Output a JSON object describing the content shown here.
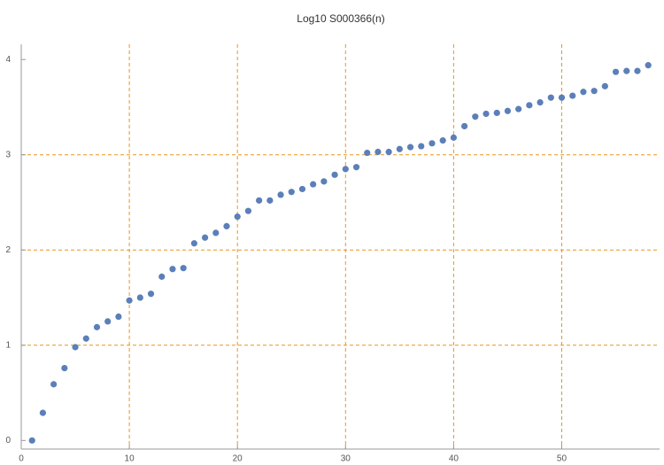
{
  "chart_data": {
    "type": "scatter",
    "title": "Log10 S000366(n)",
    "x": [
      1,
      2,
      3,
      4,
      5,
      6,
      7,
      8,
      9,
      10,
      11,
      12,
      13,
      14,
      15,
      16,
      17,
      18,
      19,
      20,
      21,
      22,
      23,
      24,
      25,
      26,
      27,
      28,
      29,
      30,
      31,
      32,
      33,
      34,
      35,
      36,
      37,
      38,
      39,
      40,
      41,
      42,
      43,
      44,
      45,
      46,
      47,
      48,
      49,
      50,
      51,
      52,
      53,
      54,
      55,
      56,
      57,
      58
    ],
    "series": [
      {
        "color": "#5b7fb8",
        "values": [
          0,
          0.29,
          0.59,
          0.76,
          0.98,
          1.07,
          1.19,
          1.25,
          1.3,
          1.47,
          1.5,
          1.54,
          1.72,
          1.8,
          1.81,
          2.07,
          2.13,
          2.18,
          2.25,
          2.35,
          2.41,
          2.52,
          2.52,
          2.58,
          2.61,
          2.64,
          2.69,
          2.72,
          2.79,
          2.85,
          2.87,
          3.02,
          3.03,
          3.03,
          3.06,
          3.08,
          3.09,
          3.12,
          3.15,
          3.18,
          3.3,
          3.4,
          3.43,
          3.44,
          3.46,
          3.48,
          3.52,
          3.55,
          3.6,
          3.6,
          3.62,
          3.66,
          3.67,
          3.72,
          3.87,
          3.88,
          3.88,
          3.94
        ]
      }
    ],
    "xlim": [
      0,
      59.05
    ],
    "ylim": [
      -0.09,
      4.16
    ],
    "xticks": [
      0,
      10,
      20,
      30,
      40,
      50
    ],
    "yticks": [
      0,
      1,
      2,
      3,
      4
    ],
    "xgrid": [
      10,
      20,
      30,
      40,
      50
    ],
    "ygrid": [
      1,
      2,
      3
    ],
    "grid_color": "#e8961e"
  }
}
